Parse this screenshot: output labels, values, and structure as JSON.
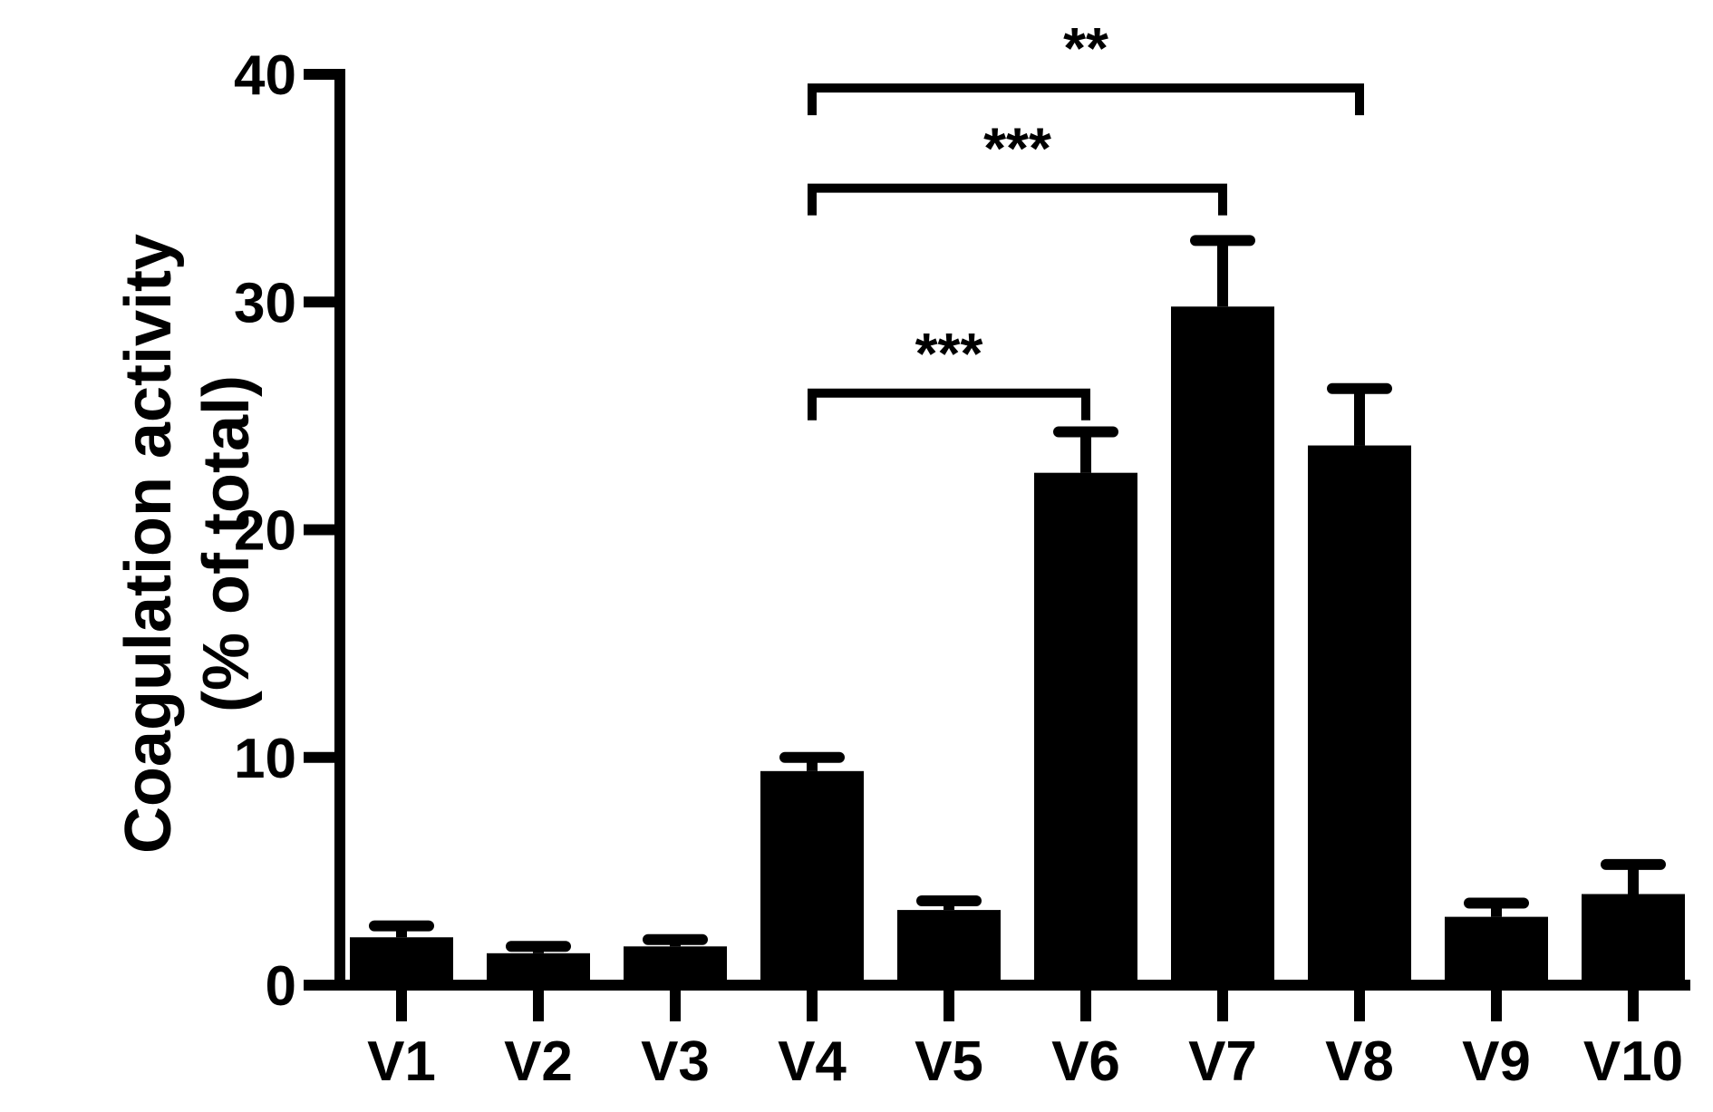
{
  "chart_data": {
    "type": "bar",
    "title": "",
    "xlabel": "",
    "ylabel": [
      "Coagulation activity",
      "(% of total)"
    ],
    "ylim": [
      0,
      40
    ],
    "yticks": [
      0,
      10,
      20,
      30,
      40
    ],
    "categories": [
      "V1",
      "V2",
      "V3",
      "V4",
      "V5",
      "V6",
      "V7",
      "V8",
      "V9",
      "V10"
    ],
    "values": [
      2.1,
      1.4,
      1.7,
      9.4,
      3.3,
      22.5,
      29.8,
      23.7,
      3.0,
      4.0
    ],
    "error_bars_upper": [
      0.5,
      0.3,
      0.3,
      0.6,
      0.4,
      1.8,
      2.9,
      2.5,
      0.6,
      1.3
    ],
    "bar_color": "#000000",
    "grid": false,
    "legend": "none",
    "significance": [
      {
        "from": "V4",
        "to": "V6",
        "label": "***",
        "level": 26
      },
      {
        "from": "V4",
        "to": "V7",
        "label": "***",
        "level": 35
      },
      {
        "from": "V4",
        "to": "V8",
        "label": "**",
        "level": 39.4
      }
    ]
  }
}
